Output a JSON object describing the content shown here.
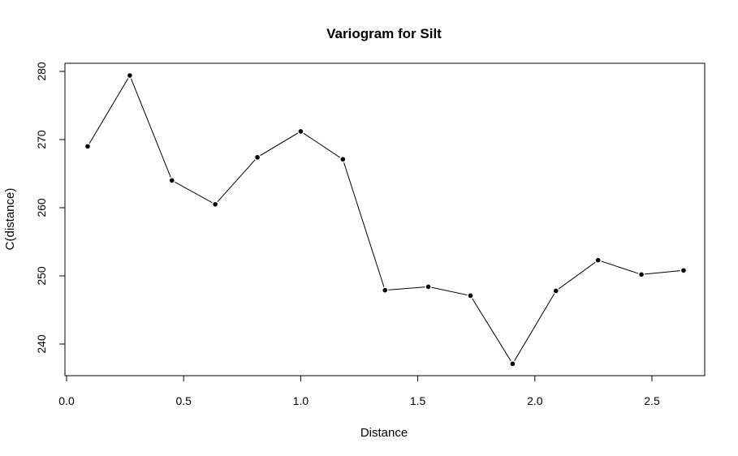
{
  "chart_data": {
    "type": "line",
    "title": "Variogram for Silt",
    "xlabel": "Distance",
    "ylabel": "C(distance)",
    "xlim": [
      0,
      2.7
    ],
    "ylim": [
      236,
      281
    ],
    "x_ticks": [
      0.0,
      0.5,
      1.0,
      1.5,
      2.0,
      2.5
    ],
    "x_tick_labels": [
      "0.0",
      "0.5",
      "1.0",
      "1.5",
      "2.0",
      "2.5"
    ],
    "y_ticks": [
      240,
      250,
      260,
      270,
      280
    ],
    "y_tick_labels": [
      "240",
      "250",
      "260",
      "270",
      "280"
    ],
    "grid": false,
    "legend": "none",
    "series": [
      {
        "x": [
          0.09,
          0.27,
          0.45,
          0.635,
          0.815,
          1.0,
          1.18,
          1.36,
          1.545,
          1.725,
          1.905,
          2.09,
          2.27,
          2.455,
          2.635
        ],
        "y": [
          269.0,
          279.4,
          264.0,
          260.5,
          267.4,
          271.2,
          267.1,
          247.9,
          248.4,
          247.1,
          237.1,
          247.8,
          252.3,
          250.2,
          250.8
        ]
      }
    ],
    "colors": {
      "line": "#000000",
      "marker": "#000000"
    }
  }
}
